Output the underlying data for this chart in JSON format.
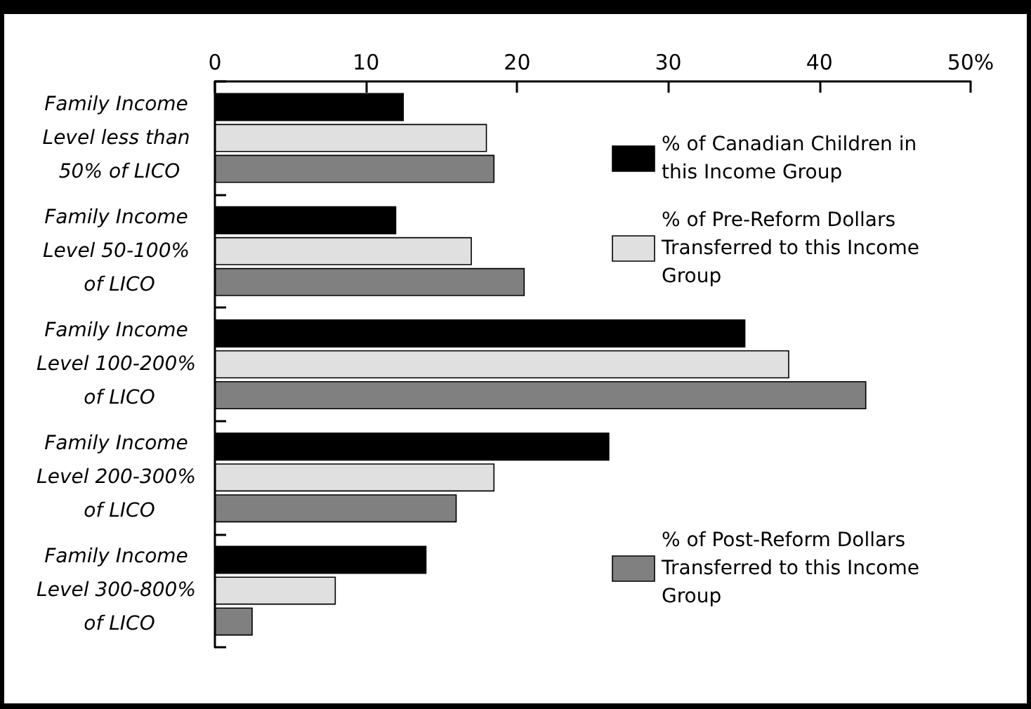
{
  "chart_data": {
    "type": "bar",
    "orientation": "horizontal",
    "categories": [
      "Family Income Level less than 50% of LICO",
      "Family Income Level 50-100% of LICO",
      "Family Income Level 100-200% of LICO",
      "Family Income Level 200-300% of LICO",
      "Family Income Level 300-800% of LICO"
    ],
    "series": [
      {
        "name": "% of Canadian Children in this Income Group",
        "color": "#000000",
        "values": [
          12.5,
          12.0,
          35.1,
          26.1,
          14.0
        ]
      },
      {
        "name": "% of Pre-Reform Dollars Transferred to this Income Group",
        "color": "#e0e0e0",
        "values": [
          18.0,
          17.0,
          38.0,
          18.5,
          8.0
        ]
      },
      {
        "name": "% of Post-Reform Dollars Transferred to this Income Group",
        "color": "#808080",
        "values": [
          18.5,
          20.5,
          43.1,
          16.0,
          2.5
        ]
      }
    ],
    "xlim": [
      0,
      50
    ],
    "xticks": [
      0,
      10,
      20,
      30,
      40,
      {
        "value": 50,
        "label": "50%"
      }
    ],
    "grid": false,
    "legend": "right"
  }
}
